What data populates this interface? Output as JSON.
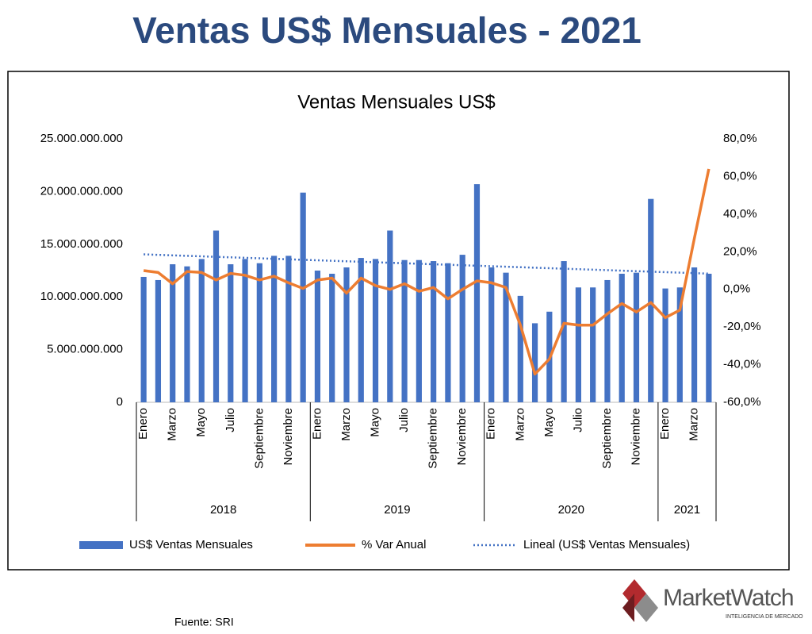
{
  "page": {
    "title": "Ventas US$ Mensuales - 2021",
    "source": "Fuente: SRI",
    "logo": "MarketWatch",
    "logo_tagline": "INTELIGENCIA DE MERCADO"
  },
  "chart_data": {
    "type": "bar",
    "title": "Ventas Mensuales US$",
    "groups": [
      {
        "name": "2018",
        "categories": [
          "Enero",
          null,
          "Marzo",
          null,
          "Mayo",
          null,
          "Julio",
          null,
          "Septiembre",
          null,
          "Noviembre",
          null
        ]
      },
      {
        "name": "2019",
        "categories": [
          "Enero",
          null,
          "Marzo",
          null,
          "Mayo",
          null,
          "Julio",
          null,
          "Septiembre",
          null,
          "Noviembre",
          null
        ]
      },
      {
        "name": "2020",
        "categories": [
          "Enero",
          null,
          "Marzo",
          null,
          "Mayo",
          null,
          "Julio",
          null,
          "Septiembre",
          null,
          "Noviembre",
          null
        ]
      },
      {
        "name": "2021",
        "categories": [
          "Enero",
          null,
          "Marzo",
          null
        ]
      }
    ],
    "series": [
      {
        "name": "US$ Ventas Mensuales",
        "type": "bar",
        "color": "#4472c4",
        "values": [
          11900000000,
          11600000000,
          13100000000,
          12900000000,
          13600000000,
          16300000000,
          13100000000,
          13600000000,
          13200000000,
          13900000000,
          13900000000,
          19900000000,
          12500000000,
          12200000000,
          12800000000,
          13700000000,
          13600000000,
          16300000000,
          13500000000,
          13500000000,
          13400000000,
          13200000000,
          14000000000,
          20700000000,
          12800000000,
          12300000000,
          10100000000,
          7500000000,
          8600000000,
          13400000000,
          10900000000,
          10900000000,
          11600000000,
          12200000000,
          12300000000,
          19300000000,
          10800000000,
          10900000000,
          12800000000,
          12200000000
        ]
      },
      {
        "name": "% Var Anual",
        "type": "line",
        "axis": "y2",
        "color": "#ed7d31",
        "values": [
          10,
          9,
          3,
          9.5,
          9,
          5,
          8.5,
          7.5,
          5,
          7,
          3.5,
          0.5,
          5,
          6,
          -2,
          6,
          2,
          0,
          3,
          -1,
          1,
          -5,
          0,
          4.5,
          3.5,
          1,
          -19,
          -45,
          -37,
          -18,
          -19,
          -19,
          -13,
          -7.5,
          -12,
          -7,
          -15,
          -11,
          27,
          64
        ]
      }
    ],
    "trendline": {
      "name": "Lineal (US$ Ventas Mensuales)",
      "color": "#4472c4"
    },
    "ylim": [
      0,
      25000000000
    ],
    "yticks": [
      0,
      {
        "value": 5000000000,
        "label": "5.000.000.000"
      },
      {
        "value": 10000000000,
        "label": "10.000.000.000"
      },
      {
        "value": 15000000000,
        "label": "15.000.000.000"
      },
      {
        "value": 20000000000,
        "label": "20.000.000.000"
      },
      {
        "value": 25000000000,
        "label": "25.000.000.000"
      }
    ],
    "y2lim": [
      -60,
      80
    ],
    "y2ticks": [
      {
        "value": -60,
        "label": "-60,0%"
      },
      {
        "value": -40,
        "label": "-40,0%"
      },
      {
        "value": -20,
        "label": "-20,0%"
      },
      {
        "value": 0,
        "label": "0,0%"
      },
      {
        "value": 20,
        "label": "20,0%"
      },
      {
        "value": 40,
        "label": "40,0%"
      },
      {
        "value": 60,
        "label": "60,0%"
      },
      {
        "value": 80,
        "label": "80,0%"
      }
    ],
    "legend": "bottom"
  }
}
